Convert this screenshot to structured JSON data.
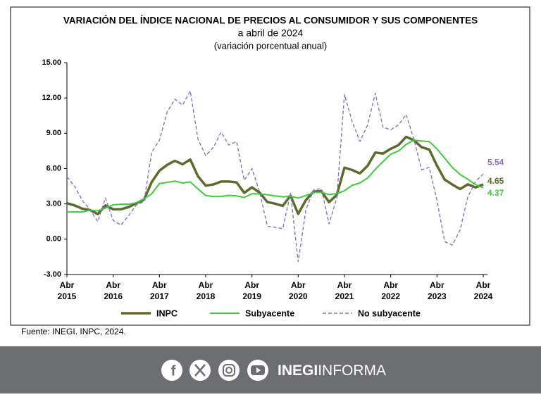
{
  "chart_data": {
    "type": "line",
    "title": "VARIACIÓN DEL ÍNDICE NACIONAL DE PRECIOS AL CONSUMIDOR Y SUS COMPONENTES",
    "subtitle": "a abril de 2024",
    "note": "(variación porcentual anual)",
    "source": "Fuente: INEGI. INPC, 2024.",
    "categories": [
      "Abr 2015",
      null,
      null,
      null,
      null,
      null,
      "Abr 2016",
      null,
      null,
      null,
      null,
      null,
      "Abr 2017",
      null,
      null,
      null,
      null,
      null,
      "Abr 2018",
      null,
      null,
      null,
      null,
      null,
      "Abr 2019",
      null,
      null,
      null,
      null,
      null,
      "Abr 2020",
      null,
      null,
      null,
      null,
      null,
      "Abr 2021",
      null,
      null,
      null,
      null,
      null,
      "Abr 2022",
      null,
      null,
      null,
      null,
      null,
      "Abr 2023",
      null,
      null,
      null,
      null,
      null,
      "Abr 2024"
    ],
    "series": [
      {
        "name": "INPC",
        "color": "#5b6b2c",
        "values": [
          3.06,
          2.87,
          2.59,
          2.48,
          2.13,
          2.87,
          2.54,
          2.54,
          2.73,
          3.06,
          3.36,
          4.86,
          5.82,
          6.31,
          6.66,
          6.37,
          6.77,
          5.34,
          4.55,
          4.65,
          4.9,
          4.9,
          4.83,
          3.94,
          4.41,
          3.95,
          3.16,
          3.02,
          2.83,
          3.7,
          2.15,
          3.33,
          4.05,
          4.09,
          3.15,
          3.76,
          6.08,
          5.88,
          5.59,
          6.24,
          7.36,
          7.28,
          7.68,
          7.99,
          8.7,
          8.41,
          7.82,
          7.62,
          6.25,
          5.06,
          4.64,
          4.26,
          4.66,
          4.4,
          4.65
        ]
      },
      {
        "name": "Subyacente",
        "color": "#3ccc3c",
        "values": [
          2.31,
          2.33,
          2.31,
          2.47,
          2.41,
          2.64,
          2.92,
          2.97,
          2.97,
          3.1,
          3.44,
          3.86,
          4.72,
          4.83,
          4.94,
          4.77,
          4.87,
          4.27,
          3.71,
          3.62,
          3.63,
          3.73,
          3.68,
          3.54,
          3.87,
          3.85,
          3.78,
          3.68,
          3.59,
          3.66,
          3.5,
          3.71,
          3.97,
          3.98,
          3.8,
          3.87,
          4.12,
          4.58,
          4.78,
          5.19,
          5.94,
          6.59,
          7.22,
          7.49,
          8.05,
          8.42,
          8.35,
          8.29,
          7.67,
          6.89,
          6.08,
          5.5,
          5.09,
          4.64,
          4.37
        ]
      },
      {
        "name": "No subyacente",
        "color": "#8b6fc4",
        "values": [
          5.3,
          4.5,
          3.3,
          2.5,
          1.5,
          3.5,
          1.6,
          1.2,
          2.0,
          2.9,
          3.2,
          7.4,
          8.4,
          10.8,
          11.9,
          11.4,
          12.6,
          8.5,
          7.1,
          7.8,
          9.1,
          8.0,
          8.3,
          5.0,
          6.0,
          4.0,
          1.1,
          1.0,
          0.9,
          3.9,
          -1.9,
          2.5,
          4.2,
          4.3,
          1.3,
          3.5,
          12.3,
          10.0,
          8.3,
          9.7,
          12.4,
          9.5,
          9.3,
          9.7,
          10.6,
          8.5,
          5.9,
          6.1,
          3.3,
          -0.2,
          -0.5,
          0.8,
          3.6,
          4.9,
          5.54
        ]
      }
    ],
    "ylim": [
      -3,
      15
    ],
    "yticks": [
      {
        "value": -3,
        "label": "-3.00"
      },
      {
        "value": 0,
        "label": "0.00"
      },
      {
        "value": 3,
        "label": "3.00"
      },
      {
        "value": 6,
        "label": "6.00"
      },
      {
        "value": 9,
        "label": "9.00"
      },
      {
        "value": 12,
        "label": "12.00"
      },
      {
        "value": 15,
        "label": "15.00"
      }
    ],
    "grid": false,
    "legend": "bottom"
  },
  "footer": {
    "brand_bold": "INEGI",
    "brand_light": "INFORMA"
  }
}
